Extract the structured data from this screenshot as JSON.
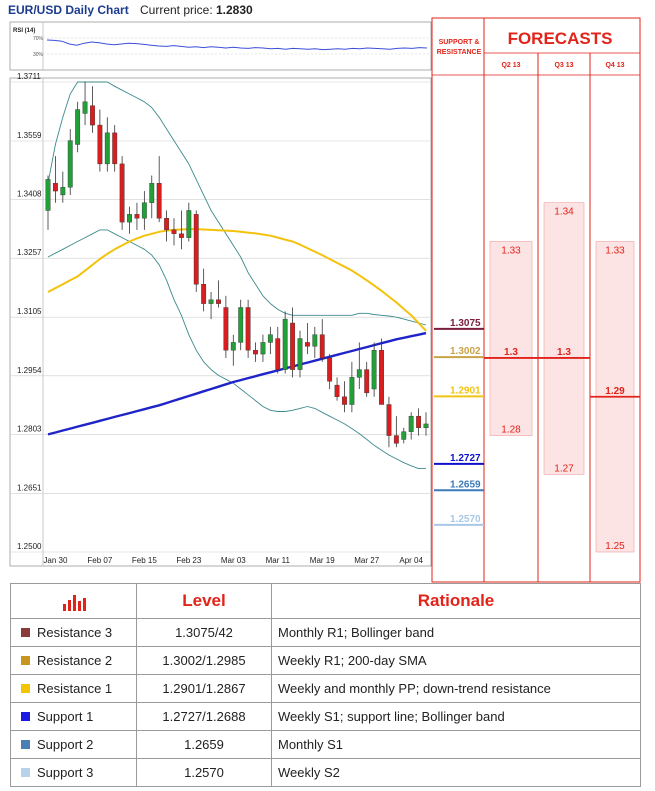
{
  "header": {
    "title": "EUR/USD Daily Chart",
    "price_label": "Current price:",
    "price_value": "1.2830"
  },
  "rsi": {
    "label": "RSI (14)",
    "level_high": "70%",
    "level_low": "30%",
    "values": [
      65,
      64,
      62,
      55,
      52,
      57,
      60,
      58,
      55,
      53,
      55,
      57,
      56,
      54,
      52,
      50,
      49,
      51,
      49,
      47,
      48,
      46,
      48,
      47,
      45,
      47,
      45,
      44,
      46,
      45,
      43,
      44,
      42,
      44,
      43,
      42,
      43,
      41,
      42,
      43,
      42,
      44,
      43,
      45,
      44,
      43,
      42,
      44,
      45,
      44,
      46,
      45
    ]
  },
  "forecasts": {
    "title": "FORECASTS",
    "sr_label_1": "SUPPORT &",
    "sr_label_2": "RESISTANCE",
    "columns": [
      {
        "label": "Q2 13",
        "high": "1.33",
        "mid": "1.3",
        "low": "1.28",
        "high_v": 1.33,
        "mid_v": 1.3,
        "low_v": 1.28
      },
      {
        "label": "Q3 13",
        "high": "1.34",
        "mid": "1.3",
        "low": "1.27",
        "high_v": 1.34,
        "mid_v": 1.3,
        "low_v": 1.27
      },
      {
        "label": "Q4 13",
        "high": "1.33",
        "mid": "1.29",
        "low": "1.25",
        "high_v": 1.33,
        "mid_v": 1.29,
        "low_v": 1.25
      }
    ]
  },
  "chart_data": {
    "type": "candlestick",
    "title": "EUR/USD Daily Chart",
    "yticks": [
      "1.3711",
      "1.3559",
      "1.3408",
      "1.3257",
      "1.3105",
      "1.2954",
      "1.2803",
      "1.2651",
      "1.2500"
    ],
    "ylim": [
      1.25,
      1.3711
    ],
    "xticks": [
      {
        "label": "Jan 30",
        "i": 1
      },
      {
        "label": "Feb 07",
        "i": 7
      },
      {
        "label": "Feb 15",
        "i": 13
      },
      {
        "label": "Feb 23",
        "i": 19
      },
      {
        "label": "Mar 03",
        "i": 25
      },
      {
        "label": "Mar 11",
        "i": 31
      },
      {
        "label": "Mar 19",
        "i": 37
      },
      {
        "label": "Mar 27",
        "i": 43
      },
      {
        "label": "Apr 04",
        "i": 49
      }
    ],
    "candles": [
      [
        1.338,
        1.347,
        1.333,
        1.346
      ],
      [
        1.345,
        1.352,
        1.34,
        1.343
      ],
      [
        1.342,
        1.348,
        1.34,
        1.344
      ],
      [
        1.344,
        1.359,
        1.342,
        1.356
      ],
      [
        1.355,
        1.366,
        1.353,
        1.364
      ],
      [
        1.363,
        1.3711,
        1.36,
        1.366
      ],
      [
        1.365,
        1.37,
        1.358,
        1.36
      ],
      [
        1.36,
        1.364,
        1.348,
        1.35
      ],
      [
        1.35,
        1.362,
        1.348,
        1.358
      ],
      [
        1.358,
        1.36,
        1.348,
        1.35
      ],
      [
        1.35,
        1.352,
        1.333,
        1.335
      ],
      [
        1.335,
        1.339,
        1.332,
        1.337
      ],
      [
        1.337,
        1.34,
        1.333,
        1.336
      ],
      [
        1.336,
        1.343,
        1.333,
        1.34
      ],
      [
        1.34,
        1.347,
        1.336,
        1.345
      ],
      [
        1.345,
        1.352,
        1.335,
        1.336
      ],
      [
        1.336,
        1.338,
        1.33,
        1.333
      ],
      [
        1.333,
        1.336,
        1.329,
        1.332
      ],
      [
        1.332,
        1.338,
        1.328,
        1.331
      ],
      [
        1.331,
        1.34,
        1.33,
        1.338
      ],
      [
        1.337,
        1.338,
        1.317,
        1.319
      ],
      [
        1.319,
        1.323,
        1.312,
        1.314
      ],
      [
        1.314,
        1.317,
        1.31,
        1.315
      ],
      [
        1.315,
        1.32,
        1.313,
        1.314
      ],
      [
        1.313,
        1.316,
        1.3,
        1.302
      ],
      [
        1.302,
        1.306,
        1.298,
        1.304
      ],
      [
        1.304,
        1.315,
        1.302,
        1.313
      ],
      [
        1.313,
        1.315,
        1.3,
        1.302
      ],
      [
        1.302,
        1.304,
        1.299,
        1.301
      ],
      [
        1.301,
        1.306,
        1.299,
        1.304
      ],
      [
        1.304,
        1.308,
        1.301,
        1.306
      ],
      [
        1.305,
        1.308,
        1.296,
        1.297
      ],
      [
        1.297,
        1.312,
        1.296,
        1.31
      ],
      [
        1.309,
        1.313,
        1.295,
        1.297
      ],
      [
        1.297,
        1.307,
        1.295,
        1.305
      ],
      [
        1.304,
        1.309,
        1.301,
        1.303
      ],
      [
        1.303,
        1.308,
        1.3,
        1.306
      ],
      [
        1.306,
        1.31,
        1.299,
        1.3
      ],
      [
        1.3,
        1.301,
        1.292,
        1.294
      ],
      [
        1.293,
        1.295,
        1.289,
        1.29
      ],
      [
        1.29,
        1.294,
        1.286,
        1.288
      ],
      [
        1.288,
        1.299,
        1.286,
        1.295
      ],
      [
        1.295,
        1.304,
        1.292,
        1.297
      ],
      [
        1.297,
        1.299,
        1.29,
        1.291
      ],
      [
        1.292,
        1.304,
        1.29,
        1.302
      ],
      [
        1.302,
        1.305,
        1.288,
        1.288
      ],
      [
        1.288,
        1.29,
        1.277,
        1.28
      ],
      [
        1.28,
        1.285,
        1.277,
        1.278
      ],
      [
        1.279,
        1.282,
        1.278,
        1.281
      ],
      [
        1.281,
        1.286,
        1.279,
        1.285
      ],
      [
        1.285,
        1.287,
        1.28,
        1.282
      ],
      [
        1.282,
        1.286,
        1.28,
        1.283
      ]
    ],
    "sma200": [
      1.2803,
      1.2808,
      1.2813,
      1.2818,
      1.2823,
      1.2828,
      1.2833,
      1.2838,
      1.2843,
      1.2848,
      1.2853,
      1.2858,
      1.2863,
      1.2868,
      1.2873,
      1.2878,
      1.2884,
      1.289,
      1.2896,
      1.2902,
      1.2908,
      1.2914,
      1.292,
      1.2926,
      1.2932,
      1.2938,
      1.2943,
      1.2948,
      1.2953,
      1.2958,
      1.2963,
      1.2968,
      1.2973,
      1.2978,
      1.2983,
      1.2988,
      1.2993,
      1.2998,
      1.3003,
      1.3008,
      1.3013,
      1.3018,
      1.3023,
      1.3028,
      1.3033,
      1.3038,
      1.3043,
      1.3048,
      1.3052,
      1.3056,
      1.306,
      1.3064
    ],
    "sma50": [
      1.317,
      1.318,
      1.319,
      1.32,
      1.321,
      1.3225,
      1.324,
      1.3255,
      1.3268,
      1.328,
      1.329,
      1.33,
      1.3308,
      1.3315,
      1.332,
      1.3325,
      1.3328,
      1.333,
      1.3331,
      1.3332,
      1.3332,
      1.3331,
      1.333,
      1.3329,
      1.3328,
      1.3327,
      1.3325,
      1.3323,
      1.3321,
      1.3318,
      1.3315,
      1.331,
      1.3305,
      1.33,
      1.3292,
      1.3283,
      1.3274,
      1.3265,
      1.3255,
      1.3245,
      1.3235,
      1.3225,
      1.3213,
      1.32,
      1.3187,
      1.3173,
      1.3158,
      1.3143,
      1.3126,
      1.311,
      1.309,
      1.307
    ],
    "bb_upper": [
      1.345,
      1.355,
      1.362,
      1.368,
      1.3711,
      1.3711,
      1.3711,
      1.3711,
      1.3711,
      1.37,
      1.369,
      1.368,
      1.367,
      1.366,
      1.3645,
      1.362,
      1.359,
      1.356,
      1.353,
      1.35,
      1.346,
      1.342,
      1.338,
      1.335,
      1.332,
      1.329,
      1.326,
      1.322,
      1.319,
      1.316,
      1.314,
      1.3125,
      1.3115,
      1.311,
      1.311,
      1.311,
      1.311,
      1.311,
      1.311,
      1.311,
      1.311,
      1.311,
      1.3115,
      1.3115,
      1.3112,
      1.311,
      1.3108,
      1.3105,
      1.31,
      1.3095,
      1.309,
      1.3085
    ],
    "bb_lower": [
      1.326,
      1.327,
      1.328,
      1.329,
      1.33,
      1.331,
      1.332,
      1.333,
      1.333,
      1.332,
      1.331,
      1.33,
      1.329,
      1.328,
      1.3265,
      1.324,
      1.32,
      1.315,
      1.311,
      1.306,
      1.302,
      1.299,
      1.297,
      1.2955,
      1.2945,
      1.2935,
      1.292,
      1.2905,
      1.289,
      1.2875,
      1.2865,
      1.2862,
      1.2862,
      1.2865,
      1.287,
      1.2875,
      1.287,
      1.286,
      1.285,
      1.284,
      1.283,
      1.2818,
      1.2805,
      1.279,
      1.2775,
      1.2762,
      1.275,
      1.274,
      1.273,
      1.2722,
      1.2715,
      1.2715
    ],
    "sr_lines": [
      {
        "label": "1.3075",
        "value": 1.3075,
        "color": "#7b1d3a"
      },
      {
        "label": "1.3002",
        "value": 1.3002,
        "color": "#c9a34a"
      },
      {
        "label": "1.2901",
        "value": 1.2901,
        "color": "#f2c40f"
      },
      {
        "label": "1.2727",
        "value": 1.2727,
        "color": "#1010cc"
      },
      {
        "label": "1.2659",
        "value": 1.2659,
        "color": "#3a7ab8"
      },
      {
        "label": "1.2570",
        "value": 1.257,
        "color": "#a8c8e8"
      }
    ]
  },
  "table": {
    "col_level": "Level",
    "col_rationale": "Rationale",
    "rows": [
      {
        "name": "Resistance 3",
        "level": "1.3075/42",
        "rationale": "Monthly R1; Bollinger band",
        "color": "#8b3a3a"
      },
      {
        "name": "Resistance 2",
        "level": "1.3002/1.2985",
        "rationale": "Weekly R1; 200-day SMA",
        "color": "#c8961e"
      },
      {
        "name": "Resistance 1",
        "level": "1.2901/1.2867",
        "rationale": "Weekly and monthly PP; down-trend resistance",
        "color": "#f5c400"
      },
      {
        "name": "Support 1",
        "level": "1.2727/1.2688",
        "rationale": "Weekly S1; support line; Bollinger band",
        "color": "#1a1ae0"
      },
      {
        "name": "Support 2",
        "level": "1.2659",
        "rationale": "Monthly S1",
        "color": "#4a7fb5"
      },
      {
        "name": "Support 3",
        "level": "1.2570",
        "rationale": "Weekly S2",
        "color": "#b9d2ec"
      }
    ]
  }
}
